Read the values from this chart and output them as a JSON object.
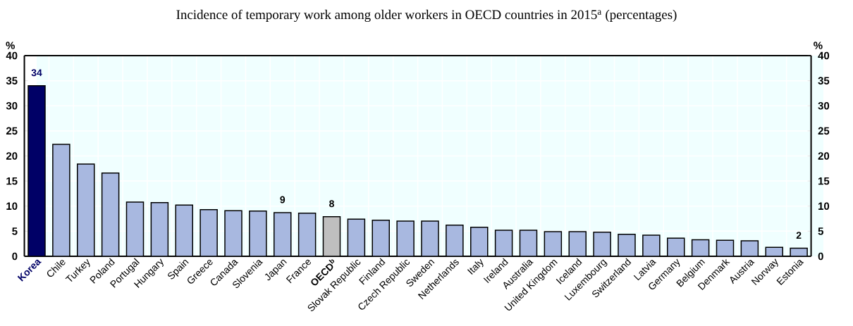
{
  "chart_data": {
    "type": "bar",
    "title": "Incidence of temporary work among older workers in OECD countries in 2015$^{a}$ (percentages)",
    "ylabel": "%",
    "y2label": "%",
    "categories": [
      "Korea",
      "Chile",
      "Turkey",
      "Poland",
      "Portugal",
      "Hungary",
      "Spain",
      "Greece",
      "Canada",
      "Slovenia",
      "Japan",
      "France",
      "OECD$^{b}$",
      "Slovak Republic",
      "Finland",
      "Czech Republic",
      "Sweden",
      "Netherlands",
      "Italy",
      "Ireland",
      "Australia",
      "United Kingdom",
      "Iceland",
      "Luxembourg",
      "Switzerland",
      "Latvia",
      "Germany",
      "Belgium",
      "Denmark",
      "Austria",
      "Norway",
      "Estonia"
    ],
    "values": [
      34.0,
      22.3,
      18.4,
      16.6,
      10.8,
      10.7,
      10.2,
      9.3,
      9.1,
      9.0,
      8.7,
      8.6,
      7.9,
      7.4,
      7.2,
      7.0,
      7.0,
      6.2,
      5.8,
      5.2,
      5.2,
      4.9,
      4.9,
      4.8,
      4.4,
      4.2,
      3.6,
      3.3,
      3.2,
      3.1,
      1.8,
      1.6
    ],
    "value_labels": [
      "34",
      null,
      null,
      null,
      null,
      null,
      null,
      null,
      null,
      null,
      "9",
      null,
      "8",
      null,
      null,
      null,
      null,
      null,
      null,
      null,
      null,
      null,
      null,
      null,
      null,
      null,
      null,
      null,
      null,
      null,
      null,
      "2"
    ],
    "colors": [
      "#000066",
      "#a8b8e0",
      "#a8b8e0",
      "#a8b8e0",
      "#a8b8e0",
      "#a8b8e0",
      "#a8b8e0",
      "#a8b8e0",
      "#a8b8e0",
      "#a8b8e0",
      "#a8b8e0",
      "#a8b8e0",
      "#bfbfbf",
      "#a8b8e0",
      "#a8b8e0",
      "#a8b8e0",
      "#a8b8e0",
      "#a8b8e0",
      "#a8b8e0",
      "#a8b8e0",
      "#a8b8e0",
      "#a8b8e0",
      "#a8b8e0",
      "#a8b8e0",
      "#a8b8e0",
      "#a8b8e0",
      "#a8b8e0",
      "#a8b8e0",
      "#a8b8e0",
      "#a8b8e0",
      "#a8b8e0",
      "#a8b8e0"
    ],
    "ylim": [
      0,
      40
    ],
    "yticks": [
      0,
      5,
      10,
      15,
      20,
      25,
      30,
      35,
      40
    ],
    "y2lim": [
      0,
      40
    ],
    "y2ticks": [
      0,
      5,
      10,
      15,
      20,
      25,
      30,
      35,
      40
    ],
    "grid": true
  }
}
